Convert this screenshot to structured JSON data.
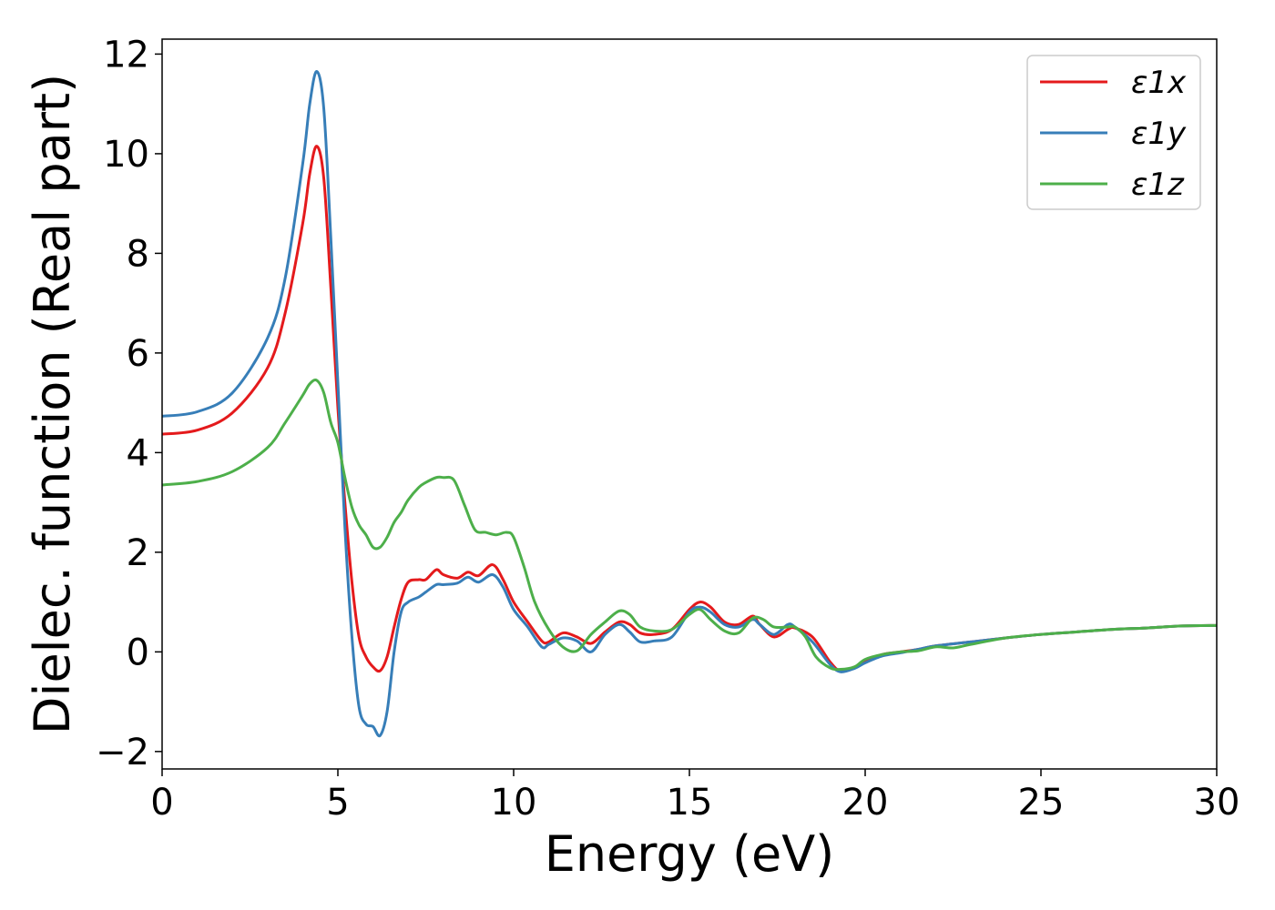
{
  "chart_data": {
    "type": "line",
    "title": "",
    "xlabel": "Energy (eV)",
    "ylabel": "Dielec. function (Real part)",
    "xlim": [
      0,
      30
    ],
    "ylim": [
      -2.35,
      12.3
    ],
    "xticks": [
      0,
      5,
      10,
      15,
      20,
      25,
      30
    ],
    "yticks": [
      -2,
      0,
      2,
      4,
      6,
      8,
      10,
      12
    ],
    "grid": false,
    "legend_position": "top-right",
    "series": [
      {
        "name": "ε1x",
        "color": "#e41a1c",
        "points": [
          [
            0,
            4.37
          ],
          [
            1,
            4.45
          ],
          [
            2,
            4.8
          ],
          [
            3,
            5.7
          ],
          [
            3.5,
            6.8
          ],
          [
            4,
            8.6
          ],
          [
            4.2,
            9.6
          ],
          [
            4.4,
            10.15
          ],
          [
            4.6,
            9.5
          ],
          [
            4.8,
            7.3
          ],
          [
            5,
            4.9
          ],
          [
            5.2,
            3.0
          ],
          [
            5.4,
            1.4
          ],
          [
            5.6,
            0.3
          ],
          [
            5.8,
            -0.1
          ],
          [
            6,
            -0.3
          ],
          [
            6.2,
            -0.38
          ],
          [
            6.4,
            -0.1
          ],
          [
            6.6,
            0.5
          ],
          [
            6.8,
            1.05
          ],
          [
            7,
            1.4
          ],
          [
            7.3,
            1.45
          ],
          [
            7.5,
            1.45
          ],
          [
            7.8,
            1.65
          ],
          [
            8,
            1.55
          ],
          [
            8.4,
            1.48
          ],
          [
            8.7,
            1.6
          ],
          [
            9,
            1.53
          ],
          [
            9.4,
            1.75
          ],
          [
            9.7,
            1.45
          ],
          [
            10,
            1.0
          ],
          [
            10.4,
            0.6
          ],
          [
            10.8,
            0.22
          ],
          [
            11,
            0.2
          ],
          [
            11.4,
            0.38
          ],
          [
            11.8,
            0.3
          ],
          [
            12.2,
            0.17
          ],
          [
            12.6,
            0.4
          ],
          [
            13,
            0.6
          ],
          [
            13.3,
            0.55
          ],
          [
            13.6,
            0.38
          ],
          [
            14,
            0.35
          ],
          [
            14.5,
            0.45
          ],
          [
            15,
            0.85
          ],
          [
            15.3,
            1.0
          ],
          [
            15.6,
            0.9
          ],
          [
            16,
            0.6
          ],
          [
            16.4,
            0.55
          ],
          [
            16.8,
            0.72
          ],
          [
            17,
            0.55
          ],
          [
            17.4,
            0.3
          ],
          [
            17.8,
            0.45
          ],
          [
            18,
            0.48
          ],
          [
            18.5,
            0.3
          ],
          [
            19,
            -0.2
          ],
          [
            19.3,
            -0.38
          ],
          [
            19.7,
            -0.3
          ],
          [
            20,
            -0.2
          ],
          [
            20.5,
            -0.05
          ],
          [
            21,
            0.0
          ],
          [
            21.5,
            0.05
          ],
          [
            22,
            0.12
          ],
          [
            23,
            0.2
          ],
          [
            24,
            0.28
          ],
          [
            25,
            0.35
          ],
          [
            26,
            0.4
          ],
          [
            27,
            0.45
          ],
          [
            28,
            0.48
          ],
          [
            29,
            0.52
          ],
          [
            30,
            0.53
          ]
        ]
      },
      {
        "name": "ε1y",
        "color": "#377eb8",
        "points": [
          [
            0,
            4.73
          ],
          [
            1,
            4.82
          ],
          [
            2,
            5.2
          ],
          [
            3,
            6.3
          ],
          [
            3.5,
            7.5
          ],
          [
            4,
            9.8
          ],
          [
            4.2,
            11.0
          ],
          [
            4.4,
            11.65
          ],
          [
            4.6,
            10.9
          ],
          [
            4.8,
            8.3
          ],
          [
            5,
            5.4
          ],
          [
            5.2,
            2.5
          ],
          [
            5.4,
            0.3
          ],
          [
            5.6,
            -1.1
          ],
          [
            5.8,
            -1.45
          ],
          [
            6,
            -1.5
          ],
          [
            6.2,
            -1.68
          ],
          [
            6.4,
            -1.2
          ],
          [
            6.6,
            0.0
          ],
          [
            6.8,
            0.8
          ],
          [
            7,
            1.0
          ],
          [
            7.3,
            1.1
          ],
          [
            7.5,
            1.2
          ],
          [
            7.8,
            1.35
          ],
          [
            8,
            1.35
          ],
          [
            8.4,
            1.38
          ],
          [
            8.7,
            1.5
          ],
          [
            9,
            1.4
          ],
          [
            9.4,
            1.55
          ],
          [
            9.7,
            1.3
          ],
          [
            10,
            0.85
          ],
          [
            10.4,
            0.5
          ],
          [
            10.8,
            0.1
          ],
          [
            11,
            0.15
          ],
          [
            11.4,
            0.28
          ],
          [
            11.8,
            0.22
          ],
          [
            12.2,
            0.0
          ],
          [
            12.6,
            0.35
          ],
          [
            13,
            0.55
          ],
          [
            13.3,
            0.4
          ],
          [
            13.6,
            0.2
          ],
          [
            14,
            0.22
          ],
          [
            14.5,
            0.3
          ],
          [
            15,
            0.8
          ],
          [
            15.3,
            0.9
          ],
          [
            15.6,
            0.8
          ],
          [
            16,
            0.55
          ],
          [
            16.4,
            0.5
          ],
          [
            16.8,
            0.65
          ],
          [
            17,
            0.55
          ],
          [
            17.4,
            0.35
          ],
          [
            17.8,
            0.55
          ],
          [
            18,
            0.5
          ],
          [
            18.5,
            0.2
          ],
          [
            19,
            -0.25
          ],
          [
            19.3,
            -0.4
          ],
          [
            19.7,
            -0.33
          ],
          [
            20,
            -0.22
          ],
          [
            20.5,
            -0.08
          ],
          [
            21,
            -0.02
          ],
          [
            21.5,
            0.05
          ],
          [
            22,
            0.12
          ],
          [
            23,
            0.2
          ],
          [
            24,
            0.28
          ],
          [
            25,
            0.35
          ],
          [
            26,
            0.4
          ],
          [
            27,
            0.45
          ],
          [
            28,
            0.48
          ],
          [
            29,
            0.52
          ],
          [
            30,
            0.53
          ]
        ]
      },
      {
        "name": "ε1z",
        "color": "#4daf4a",
        "points": [
          [
            0,
            3.35
          ],
          [
            1,
            3.42
          ],
          [
            2,
            3.62
          ],
          [
            3,
            4.1
          ],
          [
            3.5,
            4.6
          ],
          [
            4,
            5.15
          ],
          [
            4.2,
            5.38
          ],
          [
            4.4,
            5.45
          ],
          [
            4.6,
            5.2
          ],
          [
            4.8,
            4.6
          ],
          [
            5,
            4.2
          ],
          [
            5.2,
            3.5
          ],
          [
            5.4,
            2.9
          ],
          [
            5.6,
            2.55
          ],
          [
            5.8,
            2.35
          ],
          [
            6,
            2.1
          ],
          [
            6.2,
            2.1
          ],
          [
            6.4,
            2.3
          ],
          [
            6.6,
            2.6
          ],
          [
            6.8,
            2.8
          ],
          [
            7,
            3.05
          ],
          [
            7.3,
            3.3
          ],
          [
            7.5,
            3.4
          ],
          [
            7.8,
            3.5
          ],
          [
            8,
            3.5
          ],
          [
            8.3,
            3.45
          ],
          [
            8.6,
            2.95
          ],
          [
            8.9,
            2.45
          ],
          [
            9.2,
            2.4
          ],
          [
            9.5,
            2.35
          ],
          [
            9.8,
            2.4
          ],
          [
            10,
            2.3
          ],
          [
            10.3,
            1.7
          ],
          [
            10.6,
            1.0
          ],
          [
            11,
            0.45
          ],
          [
            11.4,
            0.1
          ],
          [
            11.8,
            0.02
          ],
          [
            12.2,
            0.35
          ],
          [
            12.6,
            0.6
          ],
          [
            13,
            0.82
          ],
          [
            13.3,
            0.75
          ],
          [
            13.6,
            0.5
          ],
          [
            14,
            0.42
          ],
          [
            14.5,
            0.45
          ],
          [
            15,
            0.75
          ],
          [
            15.3,
            0.85
          ],
          [
            15.6,
            0.65
          ],
          [
            16,
            0.42
          ],
          [
            16.4,
            0.38
          ],
          [
            16.8,
            0.68
          ],
          [
            17.1,
            0.65
          ],
          [
            17.4,
            0.5
          ],
          [
            17.8,
            0.5
          ],
          [
            18,
            0.5
          ],
          [
            18.3,
            0.3
          ],
          [
            18.6,
            -0.1
          ],
          [
            19,
            -0.32
          ],
          [
            19.3,
            -0.35
          ],
          [
            19.7,
            -0.3
          ],
          [
            20,
            -0.15
          ],
          [
            20.5,
            -0.05
          ],
          [
            21,
            0.0
          ],
          [
            21.5,
            0.02
          ],
          [
            22,
            0.1
          ],
          [
            22.5,
            0.08
          ],
          [
            23,
            0.15
          ],
          [
            24,
            0.28
          ],
          [
            25,
            0.35
          ],
          [
            26,
            0.4
          ],
          [
            27,
            0.45
          ],
          [
            28,
            0.48
          ],
          [
            29,
            0.52
          ],
          [
            30,
            0.53
          ]
        ]
      }
    ]
  }
}
